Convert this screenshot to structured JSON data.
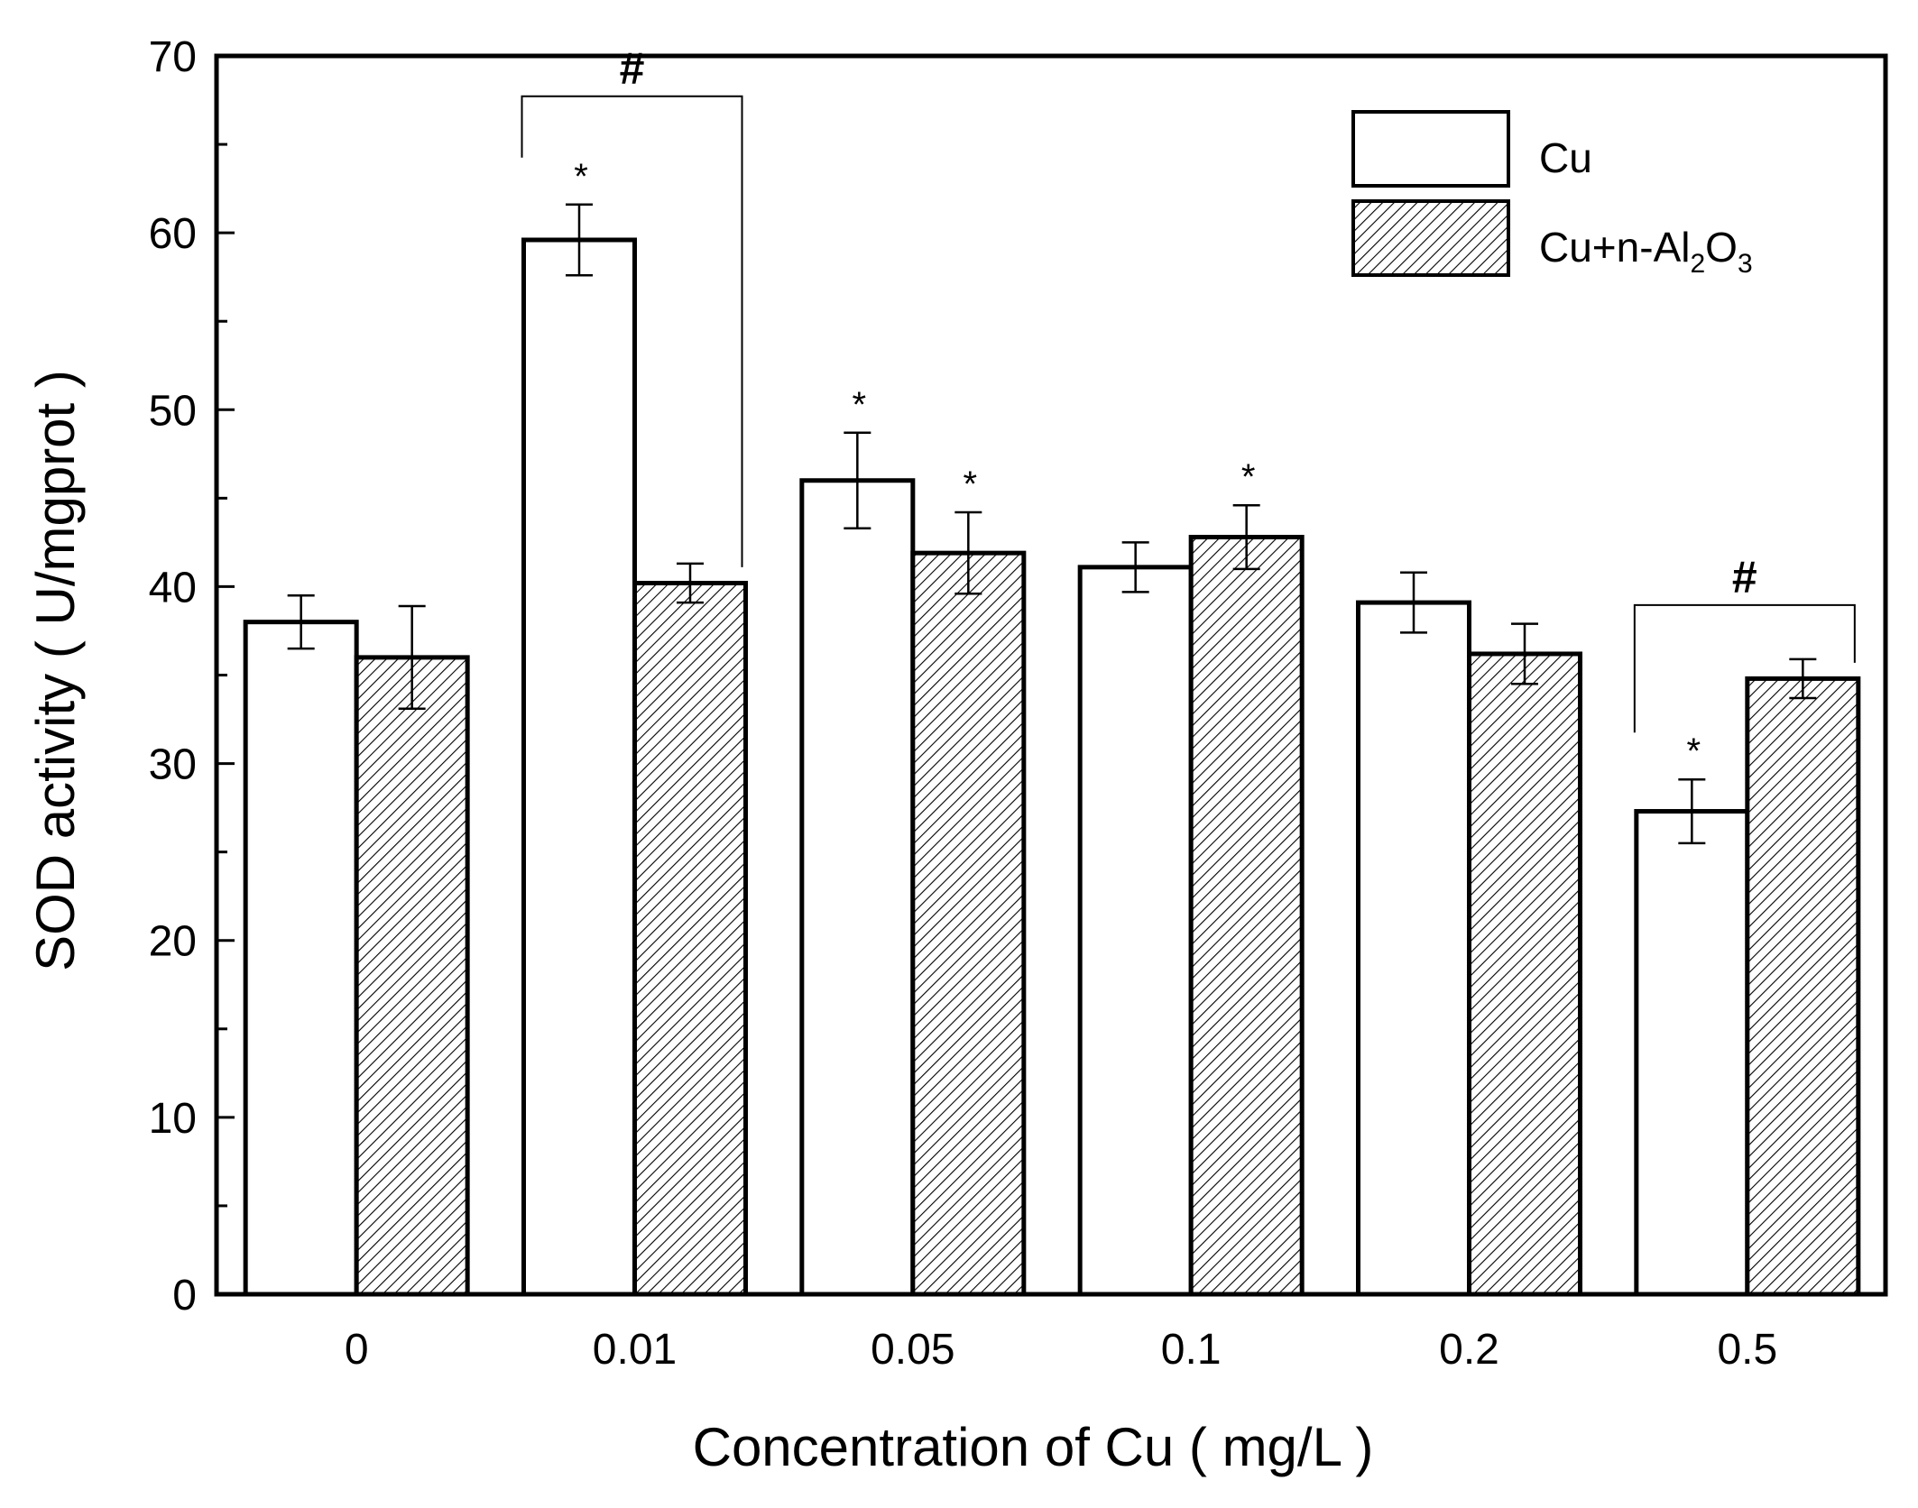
{
  "chart_data": {
    "type": "bar",
    "title": "",
    "xlabel": "Concentration of Cu ( mg/L )",
    "ylabel": "SOD activity ( U/mgprot )",
    "ylim": [
      0,
      70
    ],
    "yticks": [
      0,
      10,
      20,
      30,
      40,
      50,
      60,
      70
    ],
    "categories": [
      "0",
      "0.01",
      "0.05",
      "0.1",
      "0.2",
      "0.5"
    ],
    "series": [
      {
        "name": "Cu",
        "fill": "white",
        "values": [
          38,
          59.6,
          46,
          41.1,
          39.1,
          27.3
        ],
        "errors": [
          1.5,
          2.0,
          2.7,
          1.4,
          1.7,
          1.8
        ],
        "significance": [
          "",
          "*",
          "*",
          "",
          "",
          "*"
        ]
      },
      {
        "name": "Cu+n-Al2O3",
        "fill": "hatched",
        "values": [
          36,
          40.2,
          41.9,
          42.8,
          36.2,
          34.8
        ],
        "errors": [
          2.9,
          1.1,
          2.3,
          1.8,
          1.7,
          1.1
        ],
        "significance": [
          "",
          "",
          "*",
          "*",
          "",
          ""
        ]
      }
    ],
    "group_significance": [
      {
        "category": "0.01",
        "label": "#"
      },
      {
        "category": "0.5",
        "label": "#"
      }
    ],
    "legend": {
      "position": "top-right",
      "entries": [
        {
          "label": "Cu",
          "fill": "white"
        },
        {
          "label_main": "Cu+n-Al",
          "sub1": "2",
          "mid": "O",
          "sub2": "3",
          "fill": "hatched"
        }
      ]
    },
    "colors": {
      "stroke": "#000000",
      "background": "#ffffff",
      "bar": "#ffffff"
    }
  }
}
